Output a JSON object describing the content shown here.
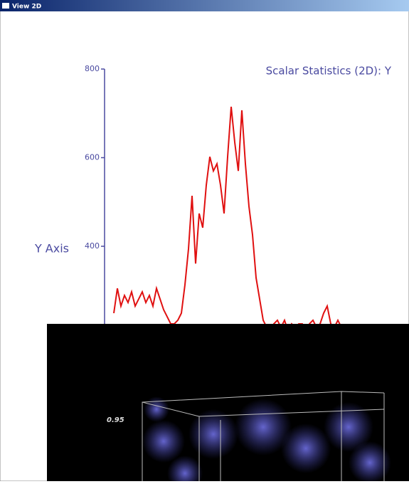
{
  "window": {
    "title": "View 2D"
  },
  "chart_data": {
    "type": "line",
    "title": "Scalar Statistics (2D): Y",
    "y_label": "Y Axis",
    "values": [
      249,
      305,
      265,
      289,
      273,
      297,
      265,
      281,
      297,
      273,
      289,
      265,
      305,
      281,
      257,
      241,
      225,
      225,
      233,
      249,
      313,
      394,
      514,
      361,
      474,
      442,
      538,
      602,
      570,
      586,
      538,
      474,
      602,
      715,
      635,
      570,
      707,
      586,
      490,
      426,
      329,
      281,
      233,
      217,
      201,
      225,
      233,
      217,
      233,
      209,
      225,
      217,
      225,
      225,
      209,
      225,
      233,
      217,
      225,
      249,
      265,
      225,
      217,
      233,
      217
    ],
    "color": "#e01010",
    "ylim": [
      0,
      800
    ],
    "yticks": [
      400,
      600,
      800
    ]
  },
  "overlay": {
    "label": "0.95"
  }
}
